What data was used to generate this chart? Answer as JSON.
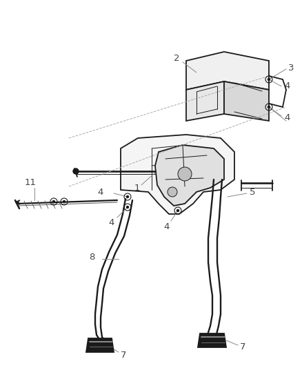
{
  "background_color": "#ffffff",
  "line_color": "#1a1a1a",
  "label_color": "#555555",
  "figsize": [
    4.38,
    5.33
  ],
  "dpi": 100,
  "lw_main": 1.3,
  "lw_thick": 2.2,
  "lw_thin": 0.7
}
